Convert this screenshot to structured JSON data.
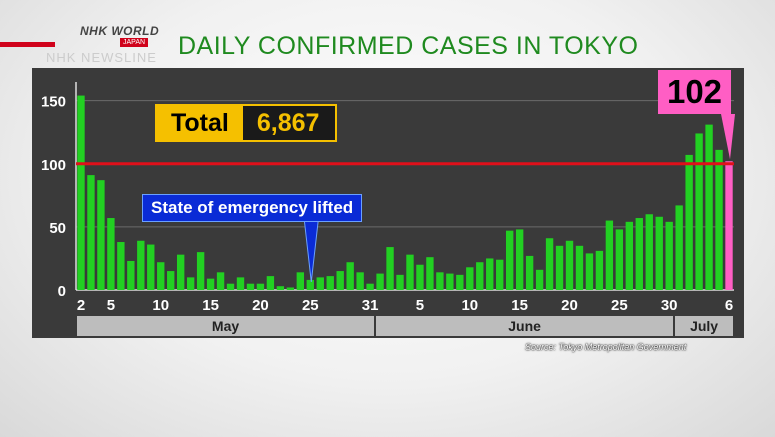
{
  "logo": {
    "brand": "NHK WORLD",
    "sub": "JAPAN",
    "program": "NHK NEWSLINE"
  },
  "title": "DAILY CONFIRMED CASES IN TOKYO",
  "total": {
    "label": "Total",
    "value": "6,867"
  },
  "annotation": "State of emergency lifted",
  "latest_badge": "102",
  "source": "Source: Tokyo Metropolitan Government",
  "months": [
    "May",
    "June",
    "July"
  ],
  "colors": {
    "bar": "#22d022",
    "latest_bar": "#ff5ec4",
    "threshold_line": "#e0101a",
    "panel": "#3a3a3a",
    "title": "#1f8a1f"
  },
  "chart_data": {
    "type": "bar",
    "title": "DAILY CONFIRMED CASES IN TOKYO",
    "ylim": [
      0,
      160
    ],
    "yticks": [
      0,
      50,
      100,
      150
    ],
    "reference_line": 100,
    "x_tick_labels": [
      {
        "index": 0,
        "label": "2"
      },
      {
        "index": 3,
        "label": "5"
      },
      {
        "index": 8,
        "label": "10"
      },
      {
        "index": 13,
        "label": "15"
      },
      {
        "index": 18,
        "label": "20"
      },
      {
        "index": 23,
        "label": "25"
      },
      {
        "index": 29,
        "label": "31"
      },
      {
        "index": 34,
        "label": "5"
      },
      {
        "index": 39,
        "label": "10"
      },
      {
        "index": 44,
        "label": "15"
      },
      {
        "index": 49,
        "label": "20"
      },
      {
        "index": 54,
        "label": "25"
      },
      {
        "index": 59,
        "label": "30"
      },
      {
        "index": 65,
        "label": "6"
      }
    ],
    "month_groups": [
      {
        "label": "May",
        "start": 0,
        "end": 29
      },
      {
        "label": "June",
        "start": 30,
        "end": 59
      },
      {
        "label": "July",
        "start": 60,
        "end": 65
      }
    ],
    "highlight_index": 65,
    "annotation_index": 23,
    "dates": [
      "May 2",
      "May 3",
      "May 4",
      "May 5",
      "May 6",
      "May 7",
      "May 8",
      "May 9",
      "May 10",
      "May 11",
      "May 12",
      "May 13",
      "May 14",
      "May 15",
      "May 16",
      "May 17",
      "May 18",
      "May 19",
      "May 20",
      "May 21",
      "May 22",
      "May 23",
      "May 24",
      "May 25",
      "May 26",
      "May 27",
      "May 28",
      "May 29",
      "May 30",
      "May 31",
      "Jun 1",
      "Jun 2",
      "Jun 3",
      "Jun 4",
      "Jun 5",
      "Jun 6",
      "Jun 7",
      "Jun 8",
      "Jun 9",
      "Jun 10",
      "Jun 11",
      "Jun 12",
      "Jun 13",
      "Jun 14",
      "Jun 15",
      "Jun 16",
      "Jun 17",
      "Jun 18",
      "Jun 19",
      "Jun 20",
      "Jun 21",
      "Jun 22",
      "Jun 23",
      "Jun 24",
      "Jun 25",
      "Jun 26",
      "Jun 27",
      "Jun 28",
      "Jun 29",
      "Jun 30",
      "Jul 1",
      "Jul 2",
      "Jul 3",
      "Jul 4",
      "Jul 5",
      "Jul 6"
    ],
    "values": [
      154,
      91,
      87,
      57,
      38,
      23,
      39,
      36,
      22,
      15,
      28,
      10,
      30,
      9,
      14,
      5,
      10,
      5,
      5,
      11,
      3,
      2,
      14,
      8,
      10,
      11,
      15,
      22,
      14,
      5,
      13,
      34,
      12,
      28,
      20,
      26,
      14,
      13,
      12,
      18,
      22,
      25,
      24,
      47,
      48,
      27,
      16,
      41,
      35,
      39,
      35,
      29,
      31,
      55,
      48,
      54,
      57,
      60,
      58,
      54,
      67,
      107,
      124,
      131,
      111,
      102
    ]
  }
}
